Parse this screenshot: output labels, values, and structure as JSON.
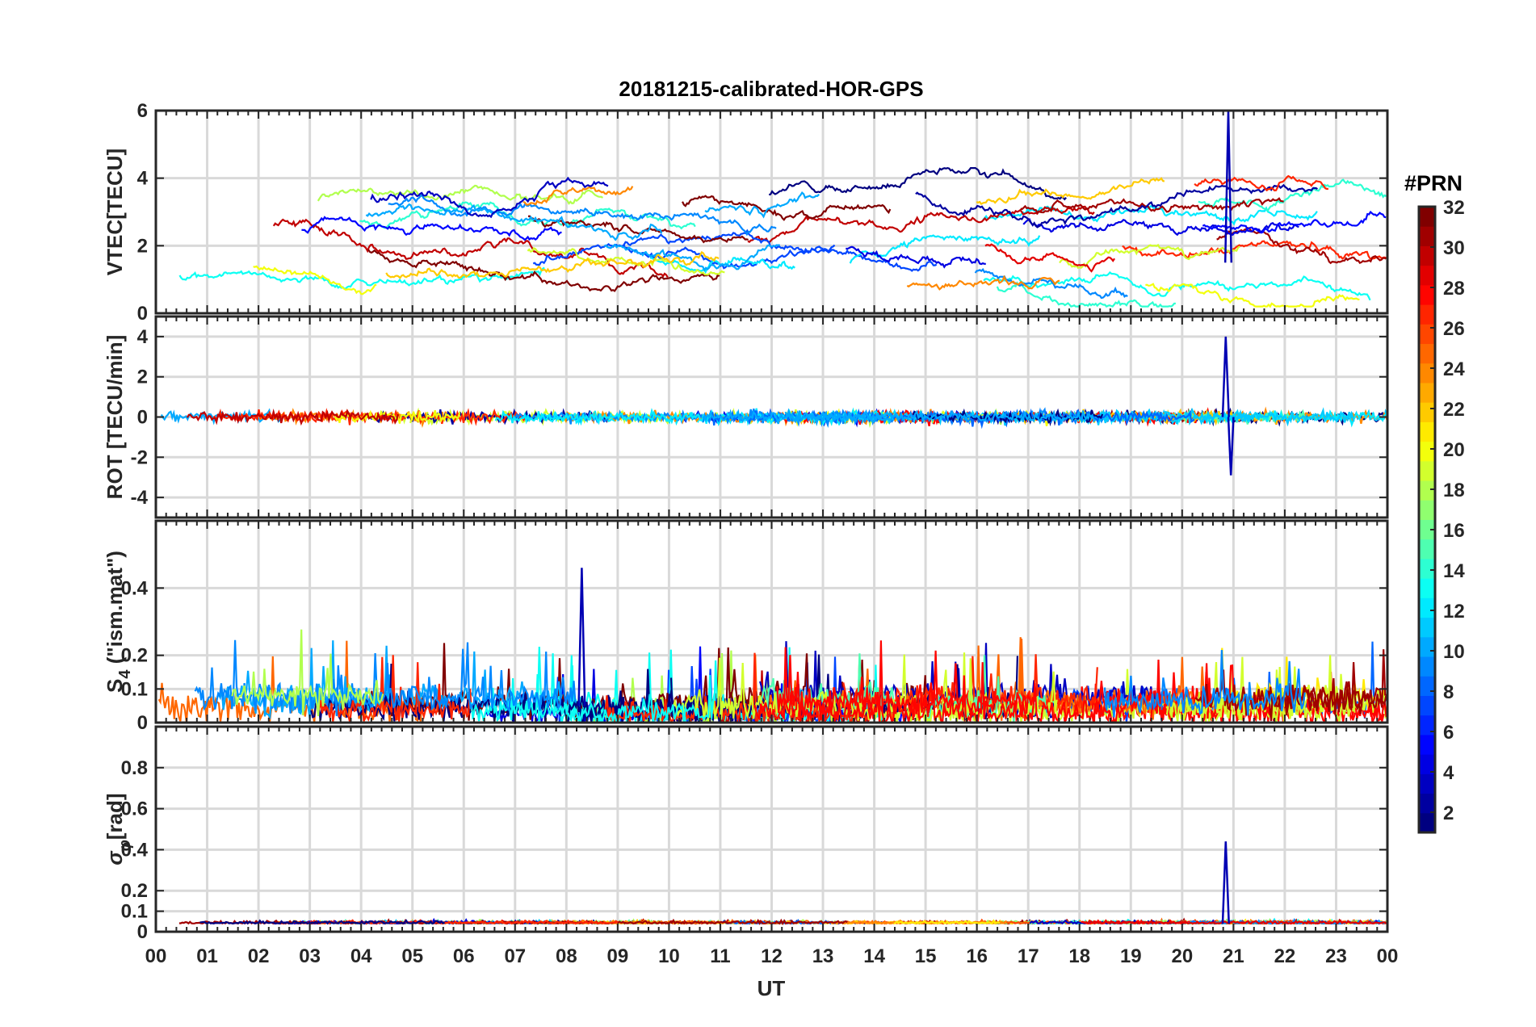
{
  "chart_data": {
    "type": "line",
    "title": "20181215-calibrated-HOR-GPS",
    "xlabel": "UT",
    "x_tick_labels": [
      "00",
      "01",
      "02",
      "03",
      "04",
      "05",
      "06",
      "07",
      "08",
      "09",
      "10",
      "11",
      "12",
      "13",
      "14",
      "15",
      "16",
      "17",
      "18",
      "19",
      "20",
      "21",
      "22",
      "23",
      "00"
    ],
    "xlim": [
      0,
      24
    ],
    "grid": true,
    "colorbar": {
      "title": "#PRN",
      "colormap": "jet",
      "range": [
        1,
        32
      ],
      "tick_labels": [
        "2",
        "4",
        "6",
        "8",
        "10",
        "12",
        "14",
        "16",
        "18",
        "20",
        "22",
        "24",
        "26",
        "28",
        "30",
        "32"
      ]
    },
    "panels": [
      {
        "ylabel": "VTEC[TECU]",
        "ylim": [
          0,
          6
        ],
        "y_tick_labels": [
          "0",
          "2",
          "4",
          "6"
        ],
        "summary": {
          "typical_range": [
            0.5,
            4.2
          ],
          "peak": {
            "x": 20.9,
            "y": 6.0
          }
        }
      },
      {
        "ylabel": "ROT [TECU/min]",
        "ylim": [
          -5,
          5
        ],
        "y_tick_labels": [
          "-4",
          "-2",
          "0",
          "2",
          "4"
        ],
        "summary": {
          "typical_range": [
            -0.8,
            0.8
          ],
          "peak": {
            "x": 20.85,
            "y": 4.0
          },
          "trough": {
            "x": 20.95,
            "y": -2.9
          }
        }
      },
      {
        "ylabel_main": "S",
        "ylabel_sub": "4",
        "ylabel_rest": " (\"ism.mat\")",
        "ylim": [
          0,
          0.6
        ],
        "y_tick_labels": [
          "0",
          "0.1",
          "0.2",
          "0.4"
        ],
        "summary": {
          "typical_range": [
            0.0,
            0.3
          ],
          "peak": {
            "x": 8.3,
            "y": 0.46
          }
        }
      },
      {
        "ylabel_main": "σ",
        "ylabel_sub": "φ",
        "ylabel_rest": "[rad]",
        "ylim": [
          0,
          1
        ],
        "y_tick_labels": [
          "0",
          "0.1",
          "0.2",
          "0.4",
          "0.6",
          "0.8"
        ],
        "summary": {
          "typical_range": [
            0.02,
            0.08
          ],
          "peak": {
            "x": 20.85,
            "y": 0.44
          }
        }
      }
    ]
  }
}
